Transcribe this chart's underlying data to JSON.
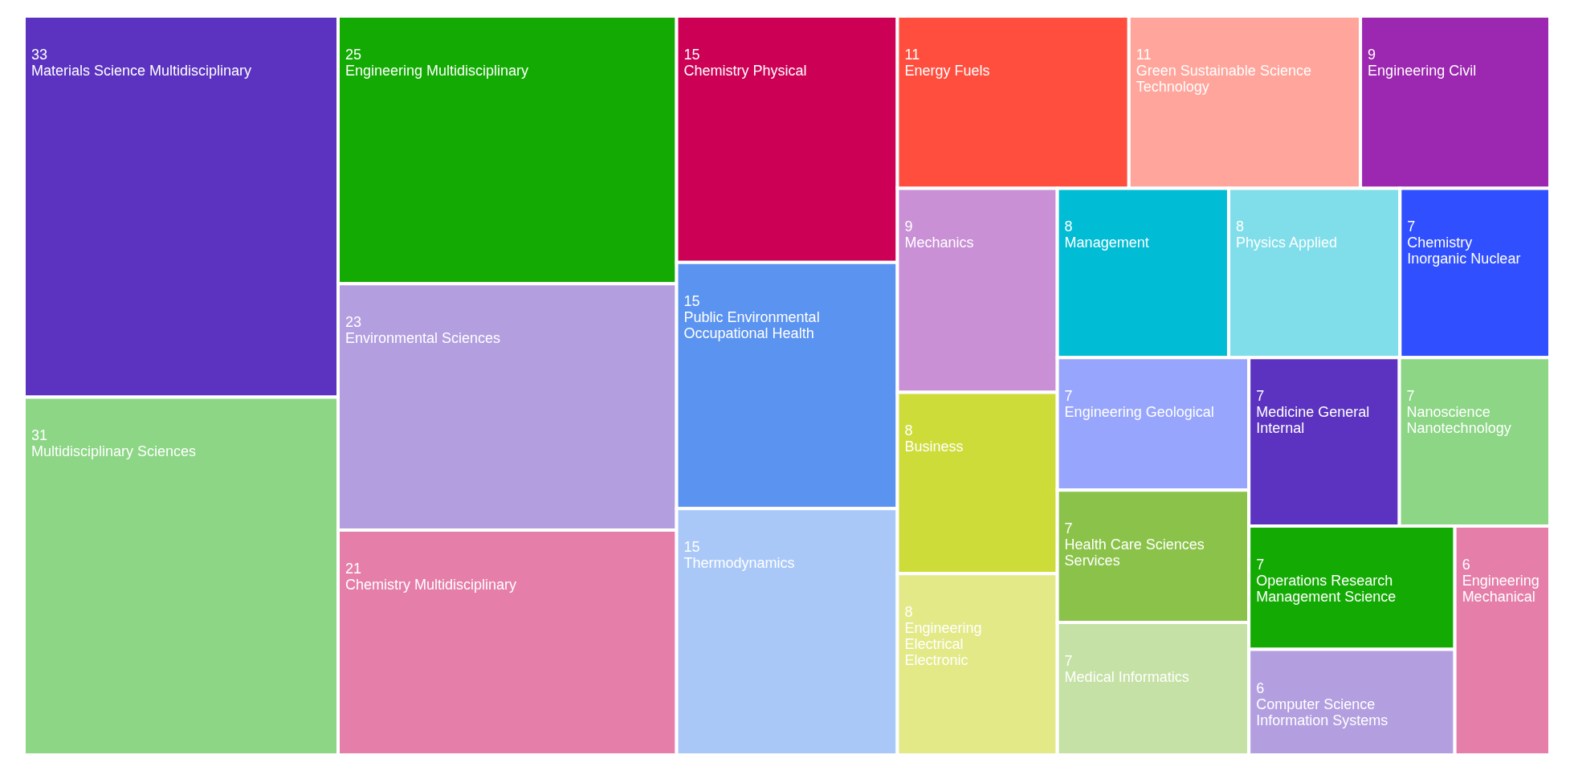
{
  "chart_data": {
    "type": "other",
    "data_labels": true,
    "categories": [
      "Materials Science Multidisciplinary",
      "Multidisciplinary Sciences",
      "Engineering Multidisciplinary",
      "Environmental Sciences",
      "Chemistry Multidisciplinary",
      "Chemistry Physical",
      "Public Environmental Occupational Health",
      "Thermodynamics",
      "Energy Fuels",
      "Green Sustainable Science Technology",
      "Engineering Civil",
      "Mechanics",
      "Business",
      "Engineering Electrical Electronic",
      "Management",
      "Physics Applied",
      "Chemistry Inorganic Nuclear",
      "Engineering Geological",
      "Health Care Sciences Services",
      "Medical Informatics",
      "Medicine General Internal",
      "Nanoscience Nanotechnology",
      "Operations Research Management Science",
      "Computer Science Information Systems",
      "Engineering Mechanical"
    ],
    "values": [
      33,
      31,
      25,
      23,
      21,
      15,
      15,
      15,
      11,
      11,
      9,
      9,
      8,
      8,
      8,
      8,
      7,
      7,
      7,
      7,
      7,
      7,
      7,
      6,
      6
    ],
    "colors": [
      "#5c33c0",
      "#8cd685",
      "#13ab03",
      "#b39fe0",
      "#e57faa",
      "#cc0055",
      "#5b93f0",
      "#a9c8f8",
      "#ff4e3e",
      "#ffa59c",
      "#9c27b0",
      "#c990d6",
      "#cddc39",
      "#e2e986",
      "#00bcd4",
      "#80deea",
      "#304ffe",
      "#97a6fc",
      "#8bc34a",
      "#c5e1a5",
      "#5c33c0",
      "#8cd685",
      "#13ab03",
      "#b39fe0",
      "#e57faa"
    ]
  }
}
